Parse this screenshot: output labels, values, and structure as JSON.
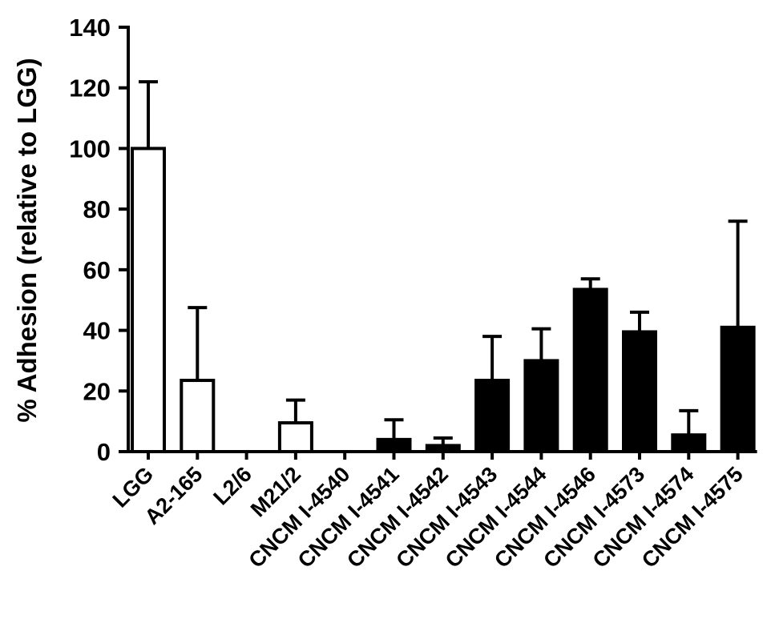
{
  "chart_data": {
    "type": "bar",
    "title": "",
    "xlabel": "",
    "ylabel": "% Adhesion (relative to LGG)",
    "ylim": [
      0,
      140
    ],
    "yticks": [
      0,
      20,
      40,
      60,
      80,
      100,
      120,
      140
    ],
    "grid": false,
    "categories": [
      "LGG",
      "A2-165",
      "L2/6",
      "M21/2",
      "CNCM I-4540",
      "CNCM I-4541",
      "CNCM I-4542",
      "CNCM I-4543",
      "CNCM I-4544",
      "CNCM I-4546",
      "CNCM I-4573",
      "CNCM I-4574",
      "CNCM I-4575"
    ],
    "values": [
      100,
      23.5,
      0,
      9.5,
      0,
      4,
      2,
      23.5,
      30,
      53.5,
      39.5,
      5.5,
      41
    ],
    "errors": [
      22,
      24,
      0,
      7.5,
      0,
      6.5,
      2.5,
      14.5,
      10.5,
      3.5,
      6.5,
      8,
      35
    ],
    "fills": [
      "white",
      "white",
      "white",
      "white",
      "black",
      "black",
      "black",
      "black",
      "black",
      "black",
      "black",
      "black",
      "black"
    ],
    "colors": {
      "bar_black": "#000000",
      "bar_white": "#ffffff",
      "axis": "#000000"
    }
  }
}
